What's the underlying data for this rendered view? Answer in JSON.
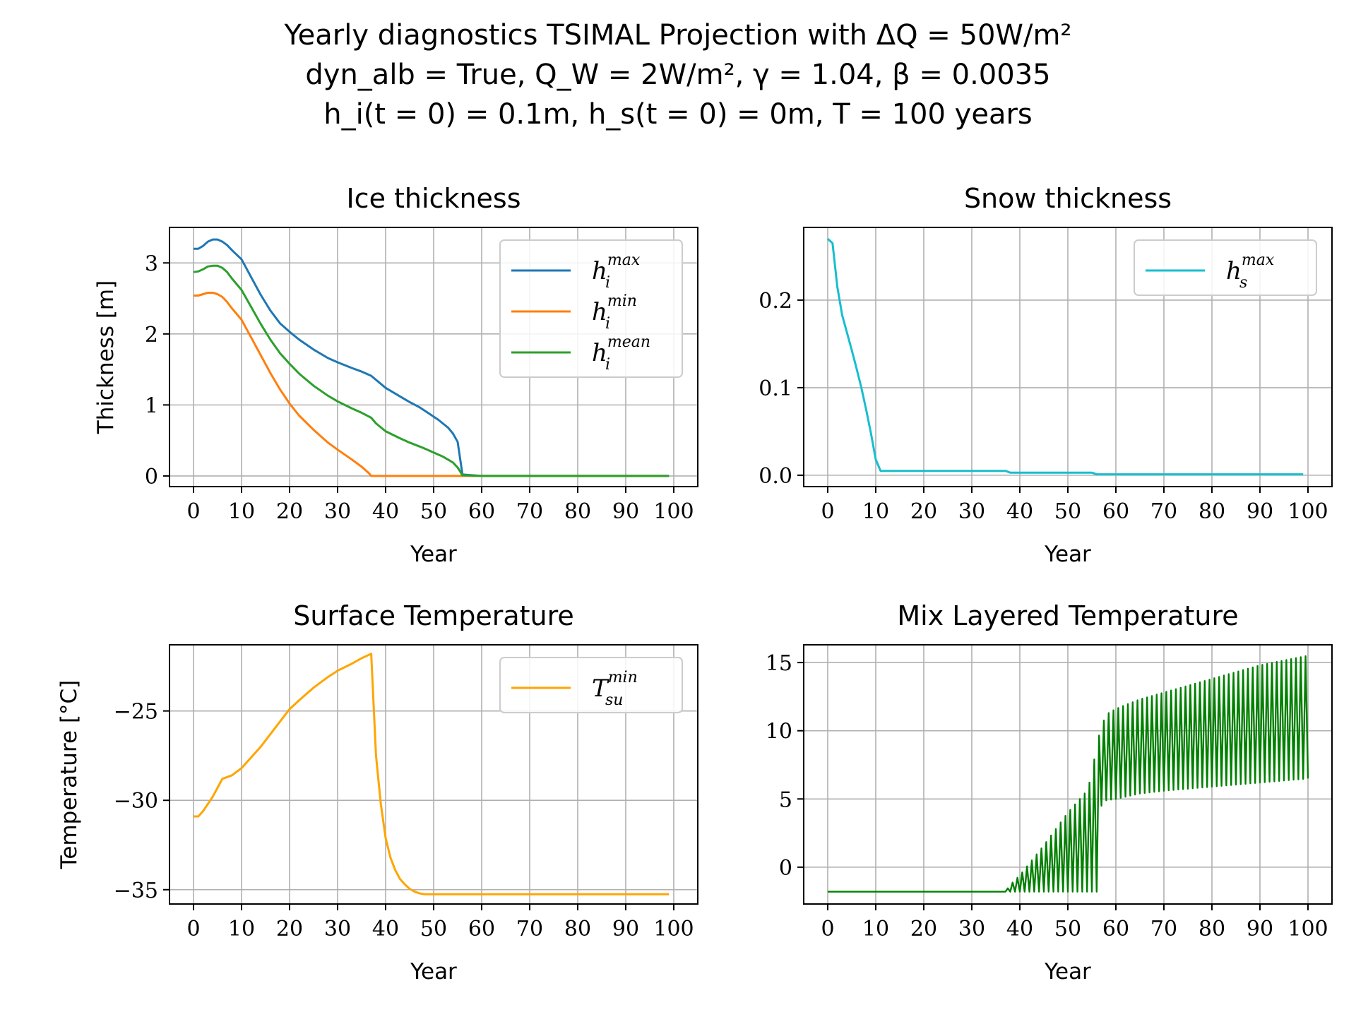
{
  "suptitle": {
    "line1": "Yearly diagnostics TSIMAL Projection with ΔQ = 50W/m²",
    "line2": "dyn_alb = True, Q_W = 2W/m², γ = 1.04, β = 0.0035",
    "line3": "h_i(t = 0) = 0.1m, h_s(t = 0) = 0m, T = 100 years"
  },
  "colors": {
    "h_max": "#1f77b4",
    "h_min": "#ff7f0e",
    "h_mean": "#2ca02c",
    "snow": "#17becf",
    "tsu": "#ffa500",
    "mix": "#008000"
  },
  "chart_data": [
    {
      "id": "ice",
      "type": "line",
      "title": "Ice thickness",
      "xlabel": "Year",
      "ylabel": "Thickness [m]",
      "xlim": [
        -5,
        105
      ],
      "ylim": [
        -0.15,
        3.5
      ],
      "xticks": [
        0,
        10,
        20,
        30,
        40,
        50,
        60,
        70,
        80,
        90,
        100
      ],
      "yticks": [
        0,
        1,
        2,
        3
      ],
      "ytick_labels": [
        "0",
        "1",
        "2",
        "3"
      ],
      "grid": true,
      "legend": "top-right",
      "series": [
        {
          "name": "h_i^max",
          "base": "h",
          "sub": "i",
          "sup": "max",
          "color": "h_max",
          "x": [
            0,
            1,
            2,
            3,
            4,
            5,
            6,
            7,
            8,
            10,
            12,
            14,
            16,
            18,
            20,
            22,
            25,
            28,
            30,
            33,
            35,
            37,
            40,
            43,
            45,
            47,
            49,
            51,
            53,
            54,
            55,
            56,
            60,
            70,
            80,
            90,
            99
          ],
          "y": [
            3.2,
            3.2,
            3.24,
            3.3,
            3.33,
            3.33,
            3.3,
            3.25,
            3.18,
            3.05,
            2.8,
            2.55,
            2.33,
            2.15,
            2.03,
            1.92,
            1.78,
            1.66,
            1.6,
            1.52,
            1.47,
            1.41,
            1.24,
            1.12,
            1.04,
            0.97,
            0.88,
            0.79,
            0.68,
            0.6,
            0.48,
            0.02,
            0,
            0,
            0,
            0,
            0
          ]
        },
        {
          "name": "h_i^min",
          "base": "h",
          "sub": "i",
          "sup": "min",
          "color": "h_min",
          "x": [
            0,
            1,
            2,
            3,
            4,
            5,
            6,
            7,
            8,
            10,
            12,
            14,
            16,
            18,
            20,
            22,
            25,
            28,
            30,
            33,
            35,
            36.5,
            37,
            40,
            45,
            50,
            56,
            60,
            70,
            80,
            90,
            99
          ],
          "y": [
            2.54,
            2.54,
            2.56,
            2.58,
            2.58,
            2.56,
            2.52,
            2.45,
            2.36,
            2.2,
            1.95,
            1.7,
            1.45,
            1.22,
            1.02,
            0.85,
            0.65,
            0.47,
            0.37,
            0.23,
            0.13,
            0.04,
            0,
            0,
            0,
            0,
            0,
            0,
            0,
            0,
            0,
            0
          ]
        },
        {
          "name": "h_i^mean",
          "base": "h",
          "sub": "i",
          "sup": "mean",
          "color": "h_mean",
          "x": [
            0,
            1,
            2,
            3,
            4,
            5,
            6,
            7,
            8,
            10,
            12,
            14,
            16,
            18,
            20,
            22,
            25,
            28,
            30,
            33,
            35,
            37,
            38,
            40,
            43,
            45,
            48,
            50,
            52,
            54,
            55,
            56,
            60,
            70,
            80,
            90,
            99
          ],
          "y": [
            2.87,
            2.88,
            2.91,
            2.95,
            2.96,
            2.96,
            2.93,
            2.87,
            2.78,
            2.62,
            2.38,
            2.14,
            1.92,
            1.73,
            1.58,
            1.44,
            1.27,
            1.13,
            1.05,
            0.95,
            0.89,
            0.82,
            0.74,
            0.63,
            0.53,
            0.47,
            0.39,
            0.33,
            0.27,
            0.19,
            0.12,
            0.01,
            0,
            0,
            0,
            0,
            0
          ]
        }
      ]
    },
    {
      "id": "snow",
      "type": "line",
      "title": "Snow thickness",
      "xlabel": "Year",
      "ylabel": "",
      "xlim": [
        -5,
        105
      ],
      "ylim": [
        -0.013,
        0.283
      ],
      "xticks": [
        0,
        10,
        20,
        30,
        40,
        50,
        60,
        70,
        80,
        90,
        100
      ],
      "yticks": [
        0,
        0.1,
        0.2
      ],
      "ytick_labels": [
        "0.0",
        "0.1",
        "0.2"
      ],
      "grid": true,
      "legend": "top-right",
      "series": [
        {
          "name": "h_s^max",
          "base": "h",
          "sub": "s",
          "sup": "max",
          "color": "snow",
          "x": [
            0,
            1,
            2,
            3,
            4,
            5,
            6,
            7,
            8,
            9,
            10,
            11,
            12,
            20,
            30,
            37,
            38,
            45,
            55,
            56,
            60,
            70,
            80,
            90,
            99
          ],
          "y": [
            0.27,
            0.265,
            0.215,
            0.183,
            0.163,
            0.143,
            0.122,
            0.1,
            0.075,
            0.048,
            0.018,
            0.005,
            0.005,
            0.005,
            0.005,
            0.005,
            0.003,
            0.003,
            0.003,
            0.001,
            0.001,
            0.001,
            0.001,
            0.001,
            0.001
          ]
        }
      ]
    },
    {
      "id": "tsu",
      "type": "line",
      "title": "Surface Temperature",
      "xlabel": "Year",
      "ylabel": "Temperature [°C]",
      "xlim": [
        -5,
        105
      ],
      "ylim": [
        -35.8,
        -21.3
      ],
      "xticks": [
        0,
        10,
        20,
        30,
        40,
        50,
        60,
        70,
        80,
        90,
        100
      ],
      "yticks": [
        -35,
        -30,
        -25
      ],
      "ytick_labels": [
        "−35",
        "−30",
        "−25"
      ],
      "grid": true,
      "legend": "top-right",
      "series": [
        {
          "name": "T_su^min",
          "base": "T",
          "sub": "su",
          "sup": "min",
          "color": "tsu",
          "x": [
            0,
            1,
            2,
            3,
            4,
            5,
            6,
            7,
            8,
            10,
            12,
            14,
            16,
            18,
            20,
            22,
            25,
            28,
            30,
            33,
            35,
            37,
            38,
            39,
            40,
            41,
            42,
            43,
            44,
            45,
            46,
            47,
            48,
            50,
            60,
            70,
            80,
            90,
            99
          ],
          "y": [
            -30.9,
            -30.9,
            -30.6,
            -30.2,
            -29.8,
            -29.3,
            -28.8,
            -28.7,
            -28.6,
            -28.2,
            -27.6,
            -27,
            -26.3,
            -25.6,
            -24.9,
            -24.4,
            -23.7,
            -23.1,
            -22.75,
            -22.35,
            -22.05,
            -21.8,
            -27.5,
            -30.2,
            -32.1,
            -33.2,
            -33.9,
            -34.4,
            -34.7,
            -34.95,
            -35.1,
            -35.2,
            -35.25,
            -35.25,
            -35.25,
            -35.25,
            -35.25,
            -35.25,
            -35.25
          ]
        }
      ]
    },
    {
      "id": "mix",
      "type": "line",
      "title": "Mix Layered Temperature",
      "xlabel": "Year",
      "ylabel": "",
      "xlim": [
        -5,
        105
      ],
      "ylim": [
        -2.7,
        16.3
      ],
      "xticks": [
        0,
        10,
        20,
        30,
        40,
        50,
        60,
        70,
        80,
        90,
        100
      ],
      "yticks": [
        0,
        5,
        10,
        15
      ],
      "ytick_labels": [
        "0",
        "5",
        "10",
        "15"
      ],
      "grid": true,
      "legend": "none",
      "series": [
        {
          "name": "",
          "color": "mix",
          "x": [
            0,
            37,
            38,
            40,
            45,
            50,
            54,
            55,
            56,
            57,
            58,
            60,
            65,
            70,
            80,
            90,
            100
          ],
          "lower": [
            -1.8,
            -1.8,
            -1.8,
            -1.8,
            -1.8,
            -1.8,
            -1.8,
            -1.8,
            -1.8,
            4.5,
            4.9,
            5.0,
            5.4,
            5.6,
            5.9,
            6.2,
            6.5
          ],
          "upper": [
            -1.8,
            -1.8,
            -1.3,
            -0.6,
            1.6,
            4.0,
            5.6,
            6.8,
            9.0,
            10.3,
            11.2,
            11.6,
            12.3,
            12.8,
            13.8,
            14.8,
            15.5
          ],
          "cycles_per_year": 1
        }
      ]
    }
  ]
}
